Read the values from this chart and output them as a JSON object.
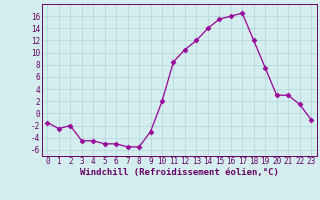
{
  "x": [
    0,
    1,
    2,
    3,
    4,
    5,
    6,
    7,
    8,
    9,
    10,
    11,
    12,
    13,
    14,
    15,
    16,
    17,
    18,
    19,
    20,
    21,
    22,
    23
  ],
  "y": [
    -1.5,
    -2.5,
    -2.0,
    -4.5,
    -4.5,
    -5.0,
    -5.0,
    -5.5,
    -5.5,
    -3.0,
    2.0,
    8.5,
    10.5,
    12.0,
    14.0,
    15.5,
    16.0,
    16.5,
    12.0,
    7.5,
    3.0,
    3.0,
    1.5,
    -1.0
  ],
  "xlabel": "Windchill (Refroidissement éolien,°C)",
  "line_color": "#990099",
  "marker": "D",
  "marker_size": 2.5,
  "bg_color": "#d4eef0",
  "grid_color": "#b0d4d8",
  "ylim": [
    -7,
    18
  ],
  "yticks": [
    -6,
    -4,
    -2,
    0,
    2,
    4,
    6,
    8,
    10,
    12,
    14,
    16
  ],
  "xlim": [
    -0.5,
    23.5
  ],
  "xticks": [
    0,
    1,
    2,
    3,
    4,
    5,
    6,
    7,
    8,
    9,
    10,
    11,
    12,
    13,
    14,
    15,
    16,
    17,
    18,
    19,
    20,
    21,
    22,
    23
  ],
  "tick_color": "#660066",
  "tick_fontsize": 5.5,
  "xlabel_fontsize": 6.5
}
